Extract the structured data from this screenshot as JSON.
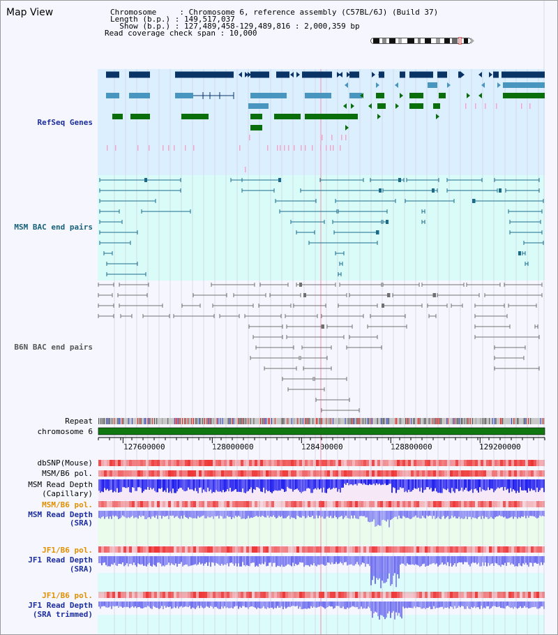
{
  "view": {
    "title": "Map View",
    "info_lines": [
      "Chromosome     : Chromosome 6, reference assembly (C57BL/6J) (Build 37)",
      "Length (b.p.) : 149,517,037",
      "  Show (b.p.) : 127,489,458-129,489,816 : 2,000,359 bp",
      "Read coverage check span : 10,000"
    ]
  },
  "tracks": {
    "refseq": "RefSeq Genes",
    "msm_bac": "MSM BAC end pairs",
    "b6n_bac": "B6N BAC end pairs",
    "repeat": "Repeat",
    "chromosome": "chromosome 6",
    "dbsnp": "dbSNP(Mouse)",
    "msm_pol_1": "MSM/B6 pol.",
    "msm_depth_cap_1": "MSM Read Depth",
    "msm_depth_cap_2": "(Capillary)",
    "msm_pol_2": "MSM/B6 pol.",
    "msm_depth_sra_1": "MSM Read Depth",
    "msm_depth_sra_2": "(SRA)",
    "jf1_pol_1": "JF1/B6 pol.",
    "jf1_depth_sra_1": "JF1 Read Depth",
    "jf1_depth_sra_2": "(SRA)",
    "jf1_pol_2": "JF1/B6 pol.",
    "jf1_depth_trim_1": "JF1 Read Depth",
    "jf1_depth_trim_2": "(SRA trimmed)"
  },
  "axis": {
    "range": [
      127489458,
      129489816
    ],
    "ticks": [
      "127600000",
      "128000000",
      "128400000",
      "128800000",
      "129200000"
    ],
    "tick_values": [
      127600000,
      128000000,
      128400000,
      128800000,
      129200000
    ]
  },
  "colors": {
    "gene_dark": "#0a3366",
    "gene_mid": "#4896c0",
    "gene_green": "#0a6e0a",
    "gene_pink": "#f4a6c8",
    "msm_pair": "#1a6a8a",
    "b6n_pair": "#707070",
    "chromosome_bar": "#117711",
    "depth_blue": "#1a1af0",
    "pol_red": "#ee3333"
  }
}
